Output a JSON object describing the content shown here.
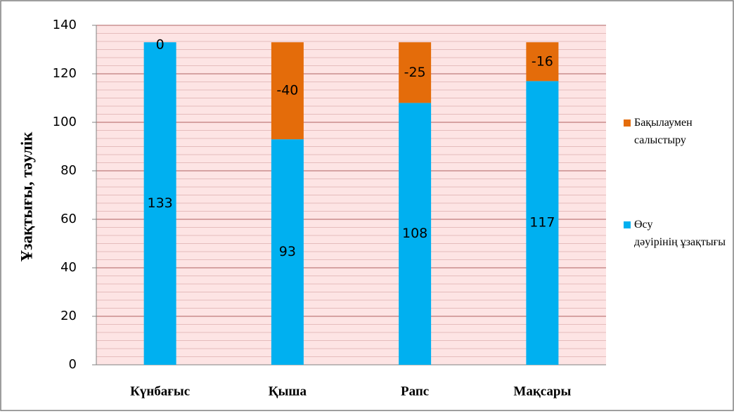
{
  "chart_data": {
    "type": "stacked_bar",
    "y_axis_label": "Ұзақтығы, тәулік",
    "categories": [
      "Күнбағыс",
      "Қыша",
      "Рапс",
      "Мақсары"
    ],
    "series": [
      {
        "name": "Өсу дәуірінің ұзақтығы",
        "color": "#00b0f0",
        "values": [
          133,
          93,
          108,
          117
        ]
      },
      {
        "name": "Бақылаумен салыстыру",
        "color": "#e46c0a",
        "values": [
          0,
          40,
          25,
          16
        ],
        "value_labels": [
          "0",
          "-40",
          "-25",
          "-16"
        ]
      }
    ],
    "ylim": [
      0,
      140
    ],
    "yticks": [
      0,
      20,
      40,
      60,
      80,
      100,
      120,
      140
    ],
    "grid": true,
    "minor_grid_divisions": 6,
    "plot_background": "#fde4e4",
    "grid_color": "#b06060",
    "legend": "right"
  }
}
